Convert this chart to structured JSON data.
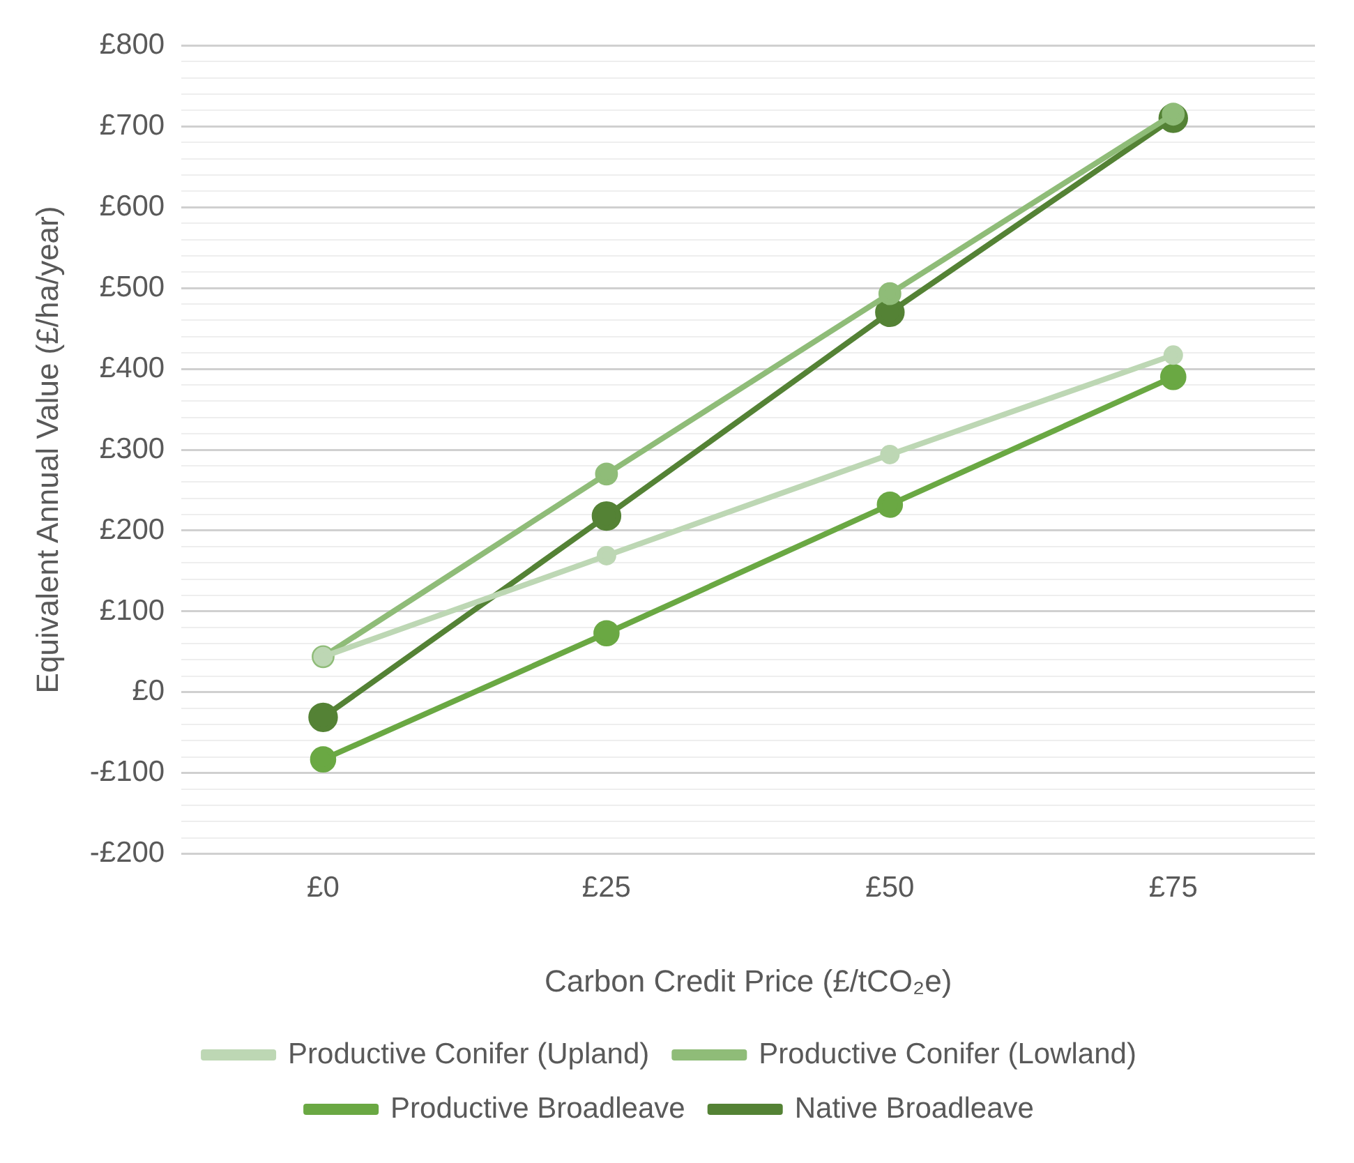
{
  "chart_data": {
    "type": "line",
    "xlabel": "Carbon Credit Price (£/tCO₂e)",
    "ylabel": "Equivalent Annual Value (£/ha/year)",
    "categories": [
      "£0",
      "£25",
      "£50",
      "£75"
    ],
    "series": [
      {
        "name": "Productive Conifer (Upland)",
        "color": "#bdd7b4",
        "values": [
          44,
          169,
          294,
          417
        ]
      },
      {
        "name": "Productive Conifer (Lowland)",
        "color": "#8fbc78",
        "values": [
          44,
          270,
          493,
          715
        ]
      },
      {
        "name": "Productive Broadleave",
        "color": "#6aa843",
        "values": [
          -83,
          73,
          232,
          390
        ]
      },
      {
        "name": "Native Broadleave",
        "color": "#548235",
        "values": [
          -31,
          218,
          470,
          710
        ]
      }
    ],
    "ylim": [
      -200,
      800
    ],
    "yticks": [
      {
        "value": -200,
        "label": "-£200"
      },
      {
        "value": -180,
        "label": null
      },
      {
        "value": -160,
        "label": null
      },
      {
        "value": -140,
        "label": null
      },
      {
        "value": -120,
        "label": null
      },
      {
        "value": -100,
        "label": "-£100"
      },
      {
        "value": -80,
        "label": null
      },
      {
        "value": -60,
        "label": null
      },
      {
        "value": -40,
        "label": null
      },
      {
        "value": -20,
        "label": null
      },
      {
        "value": 0,
        "label": "£0"
      },
      {
        "value": 20,
        "label": null
      },
      {
        "value": 40,
        "label": null
      },
      {
        "value": 60,
        "label": null
      },
      {
        "value": 80,
        "label": null
      },
      {
        "value": 100,
        "label": "£100"
      },
      {
        "value": 120,
        "label": null
      },
      {
        "value": 140,
        "label": null
      },
      {
        "value": 160,
        "label": null
      },
      {
        "value": 180,
        "label": null
      },
      {
        "value": 200,
        "label": "£200"
      },
      {
        "value": 220,
        "label": null
      },
      {
        "value": 240,
        "label": null
      },
      {
        "value": 260,
        "label": null
      },
      {
        "value": 280,
        "label": null
      },
      {
        "value": 300,
        "label": "£300"
      },
      {
        "value": 320,
        "label": null
      },
      {
        "value": 340,
        "label": null
      },
      {
        "value": 360,
        "label": null
      },
      {
        "value": 380,
        "label": null
      },
      {
        "value": 400,
        "label": "£400"
      },
      {
        "value": 420,
        "label": null
      },
      {
        "value": 440,
        "label": null
      },
      {
        "value": 460,
        "label": null
      },
      {
        "value": 480,
        "label": null
      },
      {
        "value": 500,
        "label": "£500"
      },
      {
        "value": 520,
        "label": null
      },
      {
        "value": 540,
        "label": null
      },
      {
        "value": 560,
        "label": null
      },
      {
        "value": 580,
        "label": null
      },
      {
        "value": 600,
        "label": "£600"
      },
      {
        "value": 620,
        "label": null
      },
      {
        "value": 640,
        "label": null
      },
      {
        "value": 660,
        "label": null
      },
      {
        "value": 680,
        "label": null
      },
      {
        "value": 700,
        "label": "£700"
      },
      {
        "value": 720,
        "label": null
      },
      {
        "value": 740,
        "label": null
      },
      {
        "value": 760,
        "label": null
      },
      {
        "value": 780,
        "label": null
      },
      {
        "value": 800,
        "label": "£800"
      }
    ],
    "grid": "y",
    "legend": "bottom",
    "marker": "circle",
    "line_style": "solid"
  }
}
